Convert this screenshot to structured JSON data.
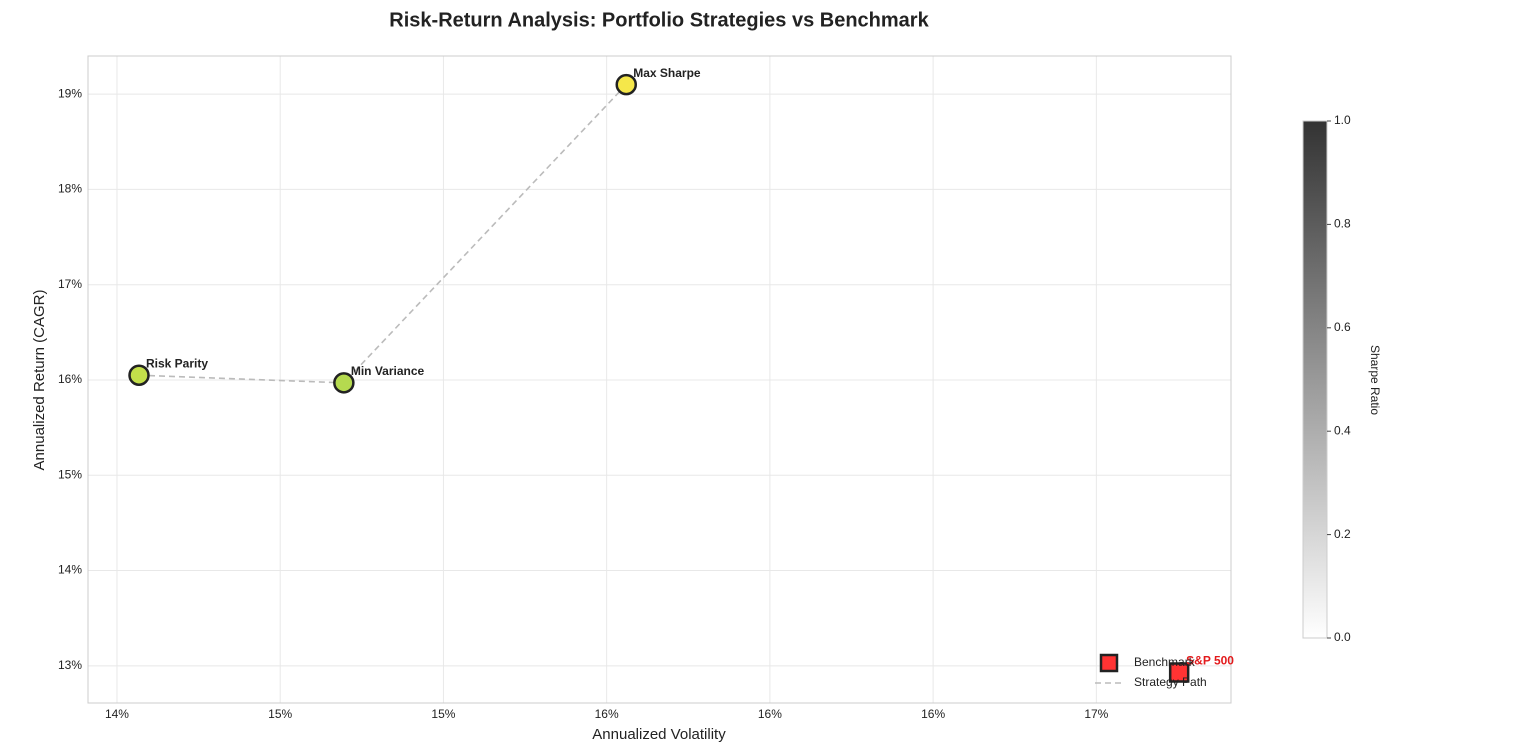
{
  "chart_data": {
    "type": "scatter",
    "title": "Risk-Return Analysis: Portfolio Strategies vs Benchmark",
    "xlabel": "Annualized Volatility",
    "ylabel": "Annualized Return (CAGR)",
    "xlim": [
      14.329,
      17.13
    ],
    "ylim": [
      12.61,
      19.4
    ],
    "xticks": [
      {
        "value": 14.4,
        "label": "14%"
      },
      {
        "value": 14.8,
        "label": "15%"
      },
      {
        "value": 15.2,
        "label": "15%"
      },
      {
        "value": 15.6,
        "label": "16%"
      },
      {
        "value": 16.0,
        "label": "16%"
      },
      {
        "value": 16.4,
        "label": "16%"
      },
      {
        "value": 16.8,
        "label": "17%"
      }
    ],
    "yticks": [
      {
        "value": 13,
        "label": "13%"
      },
      {
        "value": 14,
        "label": "14%"
      },
      {
        "value": 15,
        "label": "15%"
      },
      {
        "value": 16,
        "label": "16%"
      },
      {
        "value": 17,
        "label": "17%"
      },
      {
        "value": 18,
        "label": "18%"
      },
      {
        "value": 19,
        "label": "19%"
      }
    ],
    "grid": true,
    "legend": "lower right",
    "series": [
      {
        "name": "Benchmark",
        "color": "#ff3333",
        "labels": [
          "S&P 500"
        ],
        "x": [
          17.003
        ],
        "values": [
          12.93
        ]
      },
      {
        "name": "Strategy Path",
        "color": "#bbbbbb",
        "labels": [
          "Risk Parity",
          "Min Variance",
          "Max Sharpe"
        ],
        "x": [
          14.454,
          14.956,
          15.648
        ],
        "values": [
          16.05,
          15.97,
          19.1
        ],
        "point_colors": [
          "#c3df4a",
          "#b5da4f",
          "#f5e74a"
        ]
      }
    ],
    "colorbar": {
      "label": "Sharpe Ratio",
      "lim": [
        0,
        1
      ],
      "colors": [
        "#ffffff",
        "#333333"
      ],
      "ticks": [
        {
          "value": 0,
          "label": "0.0"
        },
        {
          "value": 0.2,
          "label": "0.2"
        },
        {
          "value": 0.4,
          "label": "0.4"
        },
        {
          "value": 0.6,
          "label": "0.6"
        },
        {
          "value": 0.8,
          "label": "0.8"
        },
        {
          "value": 1,
          "label": "1.0"
        }
      ]
    }
  }
}
